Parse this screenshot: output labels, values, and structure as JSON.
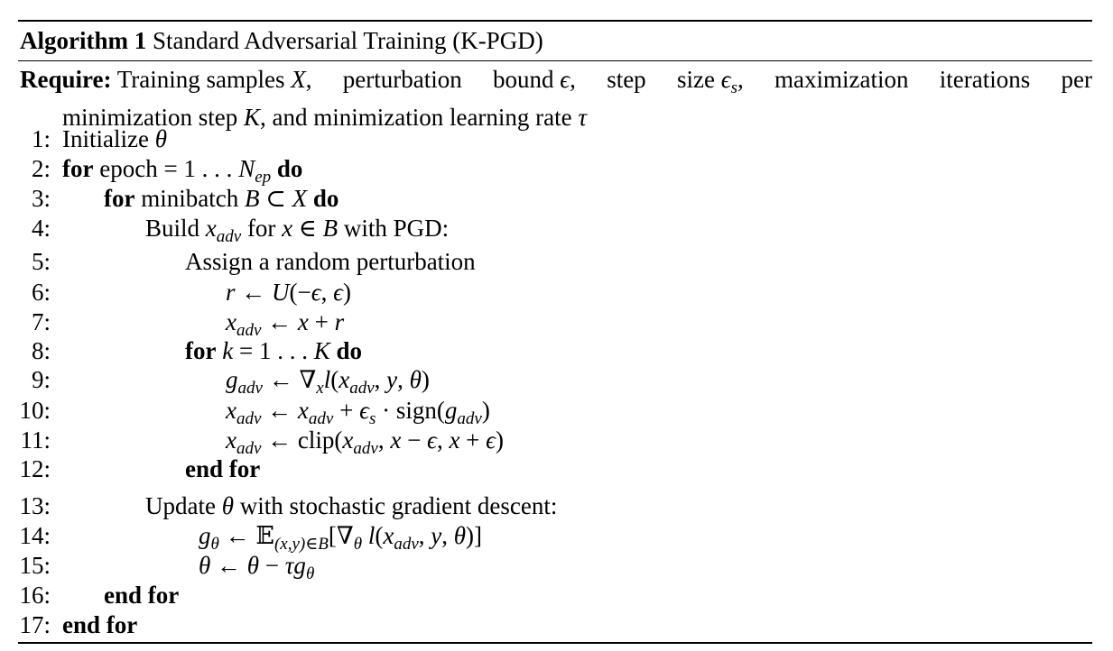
{
  "algorithm": {
    "label": "Algorithm 1",
    "title": "Standard Adversarial Training (K-PGD)"
  },
  "require": {
    "label": "Require:",
    "line1": "Training samples X, perturbation bound ϵ, step size ϵs, maximization iterations per",
    "line2": "minimization step K, and minimization learning rate τ"
  },
  "lines": [
    {
      "num": "1:",
      "text": "Initialize θ"
    },
    {
      "num": "2:",
      "text": "for epoch = 1 . . . Nep do"
    },
    {
      "num": "3:",
      "text": "for minibatch B ⊂ X do"
    },
    {
      "num": "4:",
      "text": "Build xadv for x ∈ B with PGD:"
    },
    {
      "num": "5:",
      "text": "Assign a random perturbation"
    },
    {
      "num": "6:",
      "text": "r ← U(−ϵ, ϵ)"
    },
    {
      "num": "7:",
      "text": "xadv ← x + r"
    },
    {
      "num": "8:",
      "text": "for k = 1 . . . K do"
    },
    {
      "num": "9:",
      "text": "gadv ← ∇x l(xadv, y, θ)"
    },
    {
      "num": "10:",
      "text": "xadv ← xadv + ϵs · sign(gadv)"
    },
    {
      "num": "11:",
      "text": "xadv ← clip(xadv, x − ϵ, x + ϵ)"
    },
    {
      "num": "12:",
      "text": "end for"
    },
    {
      "num": "13:",
      "text": "Update θ with stochastic gradient descent:"
    },
    {
      "num": "14:",
      "text": "gθ ← E(x,y)∈B[∇θ l(xadv, y, θ)]"
    },
    {
      "num": "15:",
      "text": "θ ← θ − τgθ"
    },
    {
      "num": "16:",
      "text": "end for"
    },
    {
      "num": "17:",
      "text": "end for"
    }
  ]
}
